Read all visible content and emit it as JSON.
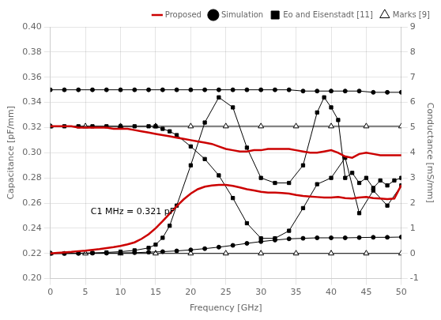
{
  "chart_data": {
    "type": "line",
    "xlabel": "Frequency [GHz]",
    "ylabel": "Capacitance [pF/mm]",
    "y2label": "Conductance [mS/mm]",
    "xlim": [
      0,
      50
    ],
    "xticks": [
      0,
      5,
      10,
      15,
      20,
      25,
      30,
      35,
      40,
      45,
      50
    ],
    "ylim": [
      0.2,
      0.4
    ],
    "yticks": [
      {
        "value": 0.2,
        "label": "0.20"
      },
      0.22,
      0.24,
      0.26,
      0.28,
      {
        "value": 0.3,
        "label": "0.30"
      },
      0.32,
      0.34,
      0.36,
      0.38,
      {
        "value": 0.4,
        "label": "0.40"
      }
    ],
    "y2lim": [
      -1,
      9
    ],
    "y2ticks": [
      -1,
      0,
      1,
      2,
      3,
      4,
      5,
      6,
      7,
      8,
      9
    ],
    "grid": true,
    "legend": "upper right",
    "annotations": [
      {
        "text": "C1 MHz = 0.321 pF"
      }
    ],
    "series": [
      {
        "name": "Proposed",
        "color": "#cc0000",
        "marker": "none",
        "line_style": "solid",
        "x": [
          0,
          1,
          2,
          3,
          4,
          5,
          6,
          7,
          8,
          9,
          10,
          11,
          12,
          13,
          14,
          15,
          16,
          17,
          18,
          19,
          20,
          21,
          22,
          23,
          24,
          25,
          26,
          27,
          28,
          29,
          30,
          31,
          32,
          33,
          34,
          35,
          36,
          37,
          38,
          39,
          40,
          41,
          42,
          43,
          44,
          45,
          46,
          47,
          48,
          49,
          50
        ],
        "values": [
          0.321,
          0.321,
          0.321,
          0.321,
          0.32,
          0.32,
          0.32,
          0.32,
          0.32,
          0.319,
          0.319,
          0.319,
          0.318,
          0.317,
          0.316,
          0.315,
          0.314,
          0.313,
          0.312,
          0.311,
          0.31,
          0.309,
          0.308,
          0.307,
          0.305,
          0.303,
          0.302,
          0.301,
          0.301,
          0.302,
          0.302,
          0.303,
          0.303,
          0.303,
          0.303,
          0.302,
          0.301,
          0.3,
          0.3,
          0.301,
          0.302,
          0.3,
          0.297,
          0.296,
          0.299,
          0.3,
          0.299,
          0.298,
          0.298,
          0.298,
          0.298
        ]
      },
      {
        "name": "Simulation",
        "color": "#000000",
        "marker": "circle",
        "line_style": "solid",
        "x": [
          0,
          2,
          4,
          6,
          8,
          10,
          12,
          14,
          16,
          18,
          20,
          22,
          24,
          26,
          28,
          30,
          32,
          34,
          36,
          38,
          40,
          42,
          44,
          46,
          48,
          50
        ],
        "values": [
          0.35,
          0.35,
          0.35,
          0.35,
          0.35,
          0.35,
          0.35,
          0.35,
          0.35,
          0.35,
          0.35,
          0.35,
          0.35,
          0.35,
          0.35,
          0.35,
          0.35,
          0.35,
          0.349,
          0.349,
          0.349,
          0.349,
          0.349,
          0.348,
          0.348,
          0.348
        ]
      },
      {
        "name": "Eo and Eisenstadt [11]",
        "color": "#000000",
        "marker": "square",
        "line_style": "solid",
        "x": [
          0,
          2,
          4,
          6,
          8,
          10,
          12,
          14,
          15,
          16,
          17,
          18,
          20,
          22,
          24,
          26,
          28,
          30,
          32,
          34,
          36,
          38,
          40,
          42,
          44,
          46,
          48,
          50
        ],
        "values": [
          0.321,
          0.321,
          0.321,
          0.321,
          0.321,
          0.321,
          0.321,
          0.321,
          0.321,
          0.319,
          0.317,
          0.314,
          0.305,
          0.295,
          0.282,
          0.264,
          0.244,
          0.232,
          0.232,
          0.238,
          0.256,
          0.275,
          0.28,
          0.296,
          0.252,
          0.27,
          0.258,
          0.274
        ]
      },
      {
        "name": "Marks [9]",
        "color": "#000000",
        "marker": "triangle_open",
        "line_style": "solid",
        "x": [
          0,
          5,
          10,
          15,
          20,
          25,
          30,
          35,
          40,
          45,
          50
        ],
        "values": [
          0.321,
          0.321,
          0.321,
          0.321,
          0.321,
          0.321,
          0.321,
          0.321,
          0.321,
          0.321,
          0.321
        ]
      },
      {
        "name": "Proposed",
        "color": "#cc0000",
        "marker": "none",
        "line_style": "solid",
        "axis": "y2",
        "x": [
          0,
          1,
          2,
          3,
          4,
          5,
          6,
          7,
          8,
          9,
          10,
          11,
          12,
          13,
          14,
          15,
          16,
          17,
          18,
          19,
          20,
          21,
          22,
          23,
          24,
          25,
          26,
          27,
          28,
          29,
          30,
          31,
          32,
          33,
          34,
          35,
          36,
          37,
          38,
          39,
          40,
          41,
          42,
          43,
          44,
          45,
          46,
          47,
          48,
          49,
          50
        ],
        "values": [
          0.0,
          0.02,
          0.04,
          0.06,
          0.09,
          0.11,
          0.14,
          0.17,
          0.21,
          0.25,
          0.3,
          0.36,
          0.44,
          0.58,
          0.76,
          1.0,
          1.28,
          1.58,
          1.88,
          2.15,
          2.38,
          2.55,
          2.65,
          2.7,
          2.72,
          2.72,
          2.68,
          2.62,
          2.55,
          2.5,
          2.45,
          2.42,
          2.42,
          2.4,
          2.38,
          2.32,
          2.28,
          2.26,
          2.24,
          2.22,
          2.22,
          2.24,
          2.2,
          2.18,
          2.22,
          2.24,
          2.2,
          2.18,
          2.16,
          2.18,
          2.72
        ]
      },
      {
        "name": "Simulation",
        "color": "#000000",
        "marker": "circle",
        "line_style": "solid",
        "axis": "y2",
        "x": [
          0,
          2,
          4,
          6,
          8,
          10,
          12,
          14,
          16,
          18,
          20,
          22,
          24,
          26,
          28,
          30,
          32,
          34,
          36,
          38,
          40,
          42,
          44,
          46,
          48,
          50
        ],
        "values": [
          0.0,
          0.0,
          0.0,
          0.01,
          0.01,
          0.02,
          0.03,
          0.05,
          0.07,
          0.1,
          0.14,
          0.19,
          0.25,
          0.32,
          0.4,
          0.47,
          0.53,
          0.58,
          0.6,
          0.62,
          0.62,
          0.62,
          0.63,
          0.64,
          0.64,
          0.65
        ]
      },
      {
        "name": "Eo and Eisenstadt [11]",
        "color": "#000000",
        "marker": "square",
        "line_style": "solid",
        "axis": "y2",
        "x": [
          0,
          2,
          4,
          6,
          8,
          10,
          12,
          14,
          15,
          16,
          17,
          18,
          20,
          22,
          24,
          26,
          28,
          30,
          32,
          34,
          36,
          38,
          39,
          40,
          41,
          42,
          43,
          44,
          45,
          46,
          47,
          48,
          49,
          50
        ],
        "values": [
          0.0,
          0.0,
          0.01,
          0.02,
          0.04,
          0.07,
          0.12,
          0.22,
          0.35,
          0.62,
          1.1,
          1.9,
          3.5,
          5.2,
          6.2,
          5.8,
          4.2,
          3.0,
          2.8,
          2.8,
          3.5,
          5.6,
          6.2,
          5.8,
          5.3,
          3.0,
          3.2,
          2.8,
          3.0,
          2.6,
          2.9,
          2.7,
          2.9,
          3.0
        ]
      },
      {
        "name": "Marks [9]",
        "color": "#000000",
        "marker": "triangle_open",
        "line_style": "solid",
        "axis": "y2",
        "x": [
          0,
          5,
          10,
          15,
          20,
          25,
          30,
          35,
          40,
          45,
          50
        ],
        "values": [
          0.0,
          0.0,
          0.0,
          0.0,
          0.0,
          0.0,
          0.0,
          0.0,
          0.0,
          0.0,
          0.0
        ]
      }
    ]
  }
}
